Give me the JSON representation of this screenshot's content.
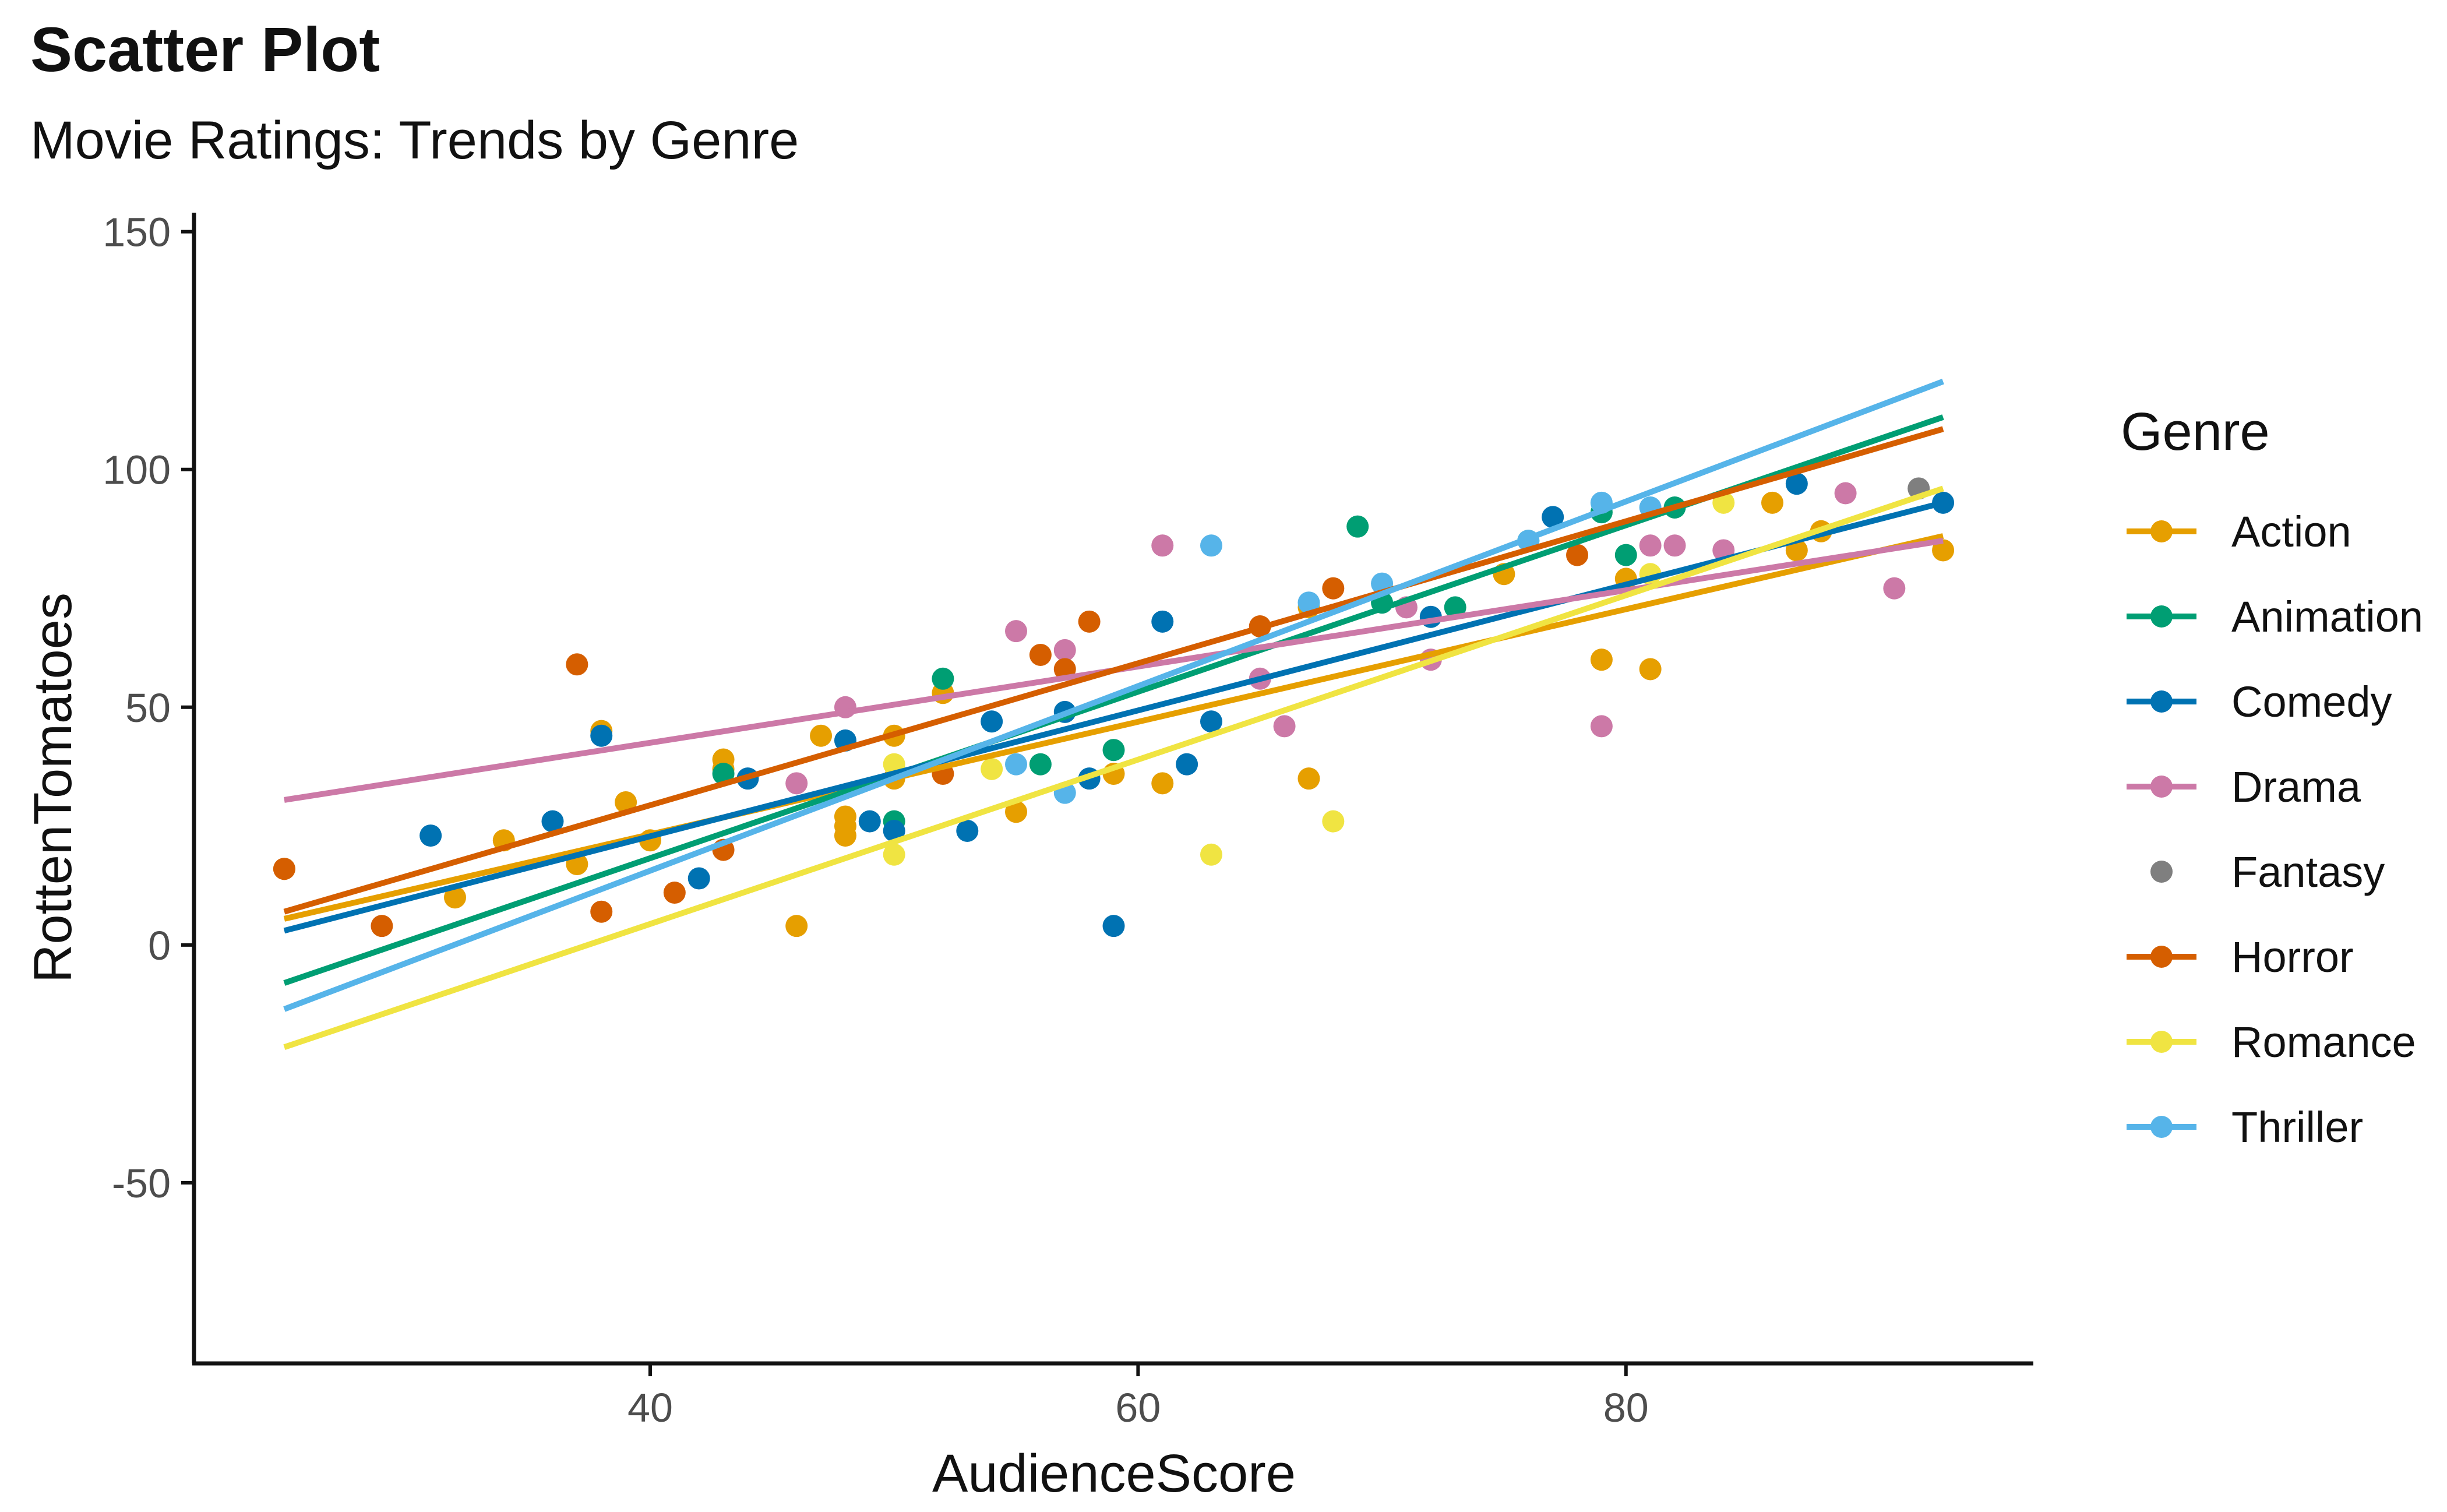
{
  "chart_data": {
    "type": "scatter",
    "title": "Scatter Plot",
    "subtitle": "Movie Ratings: Trends by Genre",
    "xlabel": "AudienceScore",
    "ylabel": "RottenTomatoes",
    "xlim": [
      21.3,
      96.7
    ],
    "ylim": [
      -88,
      154
    ],
    "xticks": [
      40,
      60,
      80
    ],
    "yticks": [
      -50,
      0,
      50,
      100,
      150
    ],
    "xtick_labels": [
      "40",
      "60",
      "80"
    ],
    "ytick_labels": [
      "-50",
      "0",
      "50",
      "100",
      "150"
    ],
    "grid": false,
    "legend": {
      "title": "Genre",
      "position": "right"
    },
    "series": [
      {
        "name": "Action",
        "color": "#E69F00",
        "trend": true,
        "points": [
          [
            25,
            16
          ],
          [
            32,
            10
          ],
          [
            34,
            22
          ],
          [
            37,
            17
          ],
          [
            38,
            45
          ],
          [
            39,
            30
          ],
          [
            40,
            22
          ],
          [
            43,
            39
          ],
          [
            43,
            37
          ],
          [
            46,
            4
          ],
          [
            47,
            44
          ],
          [
            48,
            27
          ],
          [
            48,
            25
          ],
          [
            48,
            23
          ],
          [
            50,
            44
          ],
          [
            50,
            35
          ],
          [
            52,
            53
          ],
          [
            55,
            28
          ],
          [
            59,
            36
          ],
          [
            61,
            34
          ],
          [
            67,
            35
          ],
          [
            67,
            71
          ],
          [
            75,
            78
          ],
          [
            79,
            60
          ],
          [
            80,
            77
          ],
          [
            81,
            58
          ],
          [
            86,
            93
          ],
          [
            87,
            83
          ],
          [
            88,
            87
          ],
          [
            93,
            83
          ]
        ],
        "trend_line": [
          [
            25,
            5.5
          ],
          [
            93,
            86
          ]
        ]
      },
      {
        "name": "Animation",
        "color": "#009E73",
        "trend": true,
        "points": [
          [
            43,
            36
          ],
          [
            50,
            26
          ],
          [
            52,
            56
          ],
          [
            56,
            38
          ],
          [
            59,
            41
          ],
          [
            69,
            88
          ],
          [
            70,
            72
          ],
          [
            73,
            71
          ],
          [
            76,
            85
          ],
          [
            79,
            91
          ],
          [
            80,
            82
          ],
          [
            82,
            92
          ]
        ],
        "trend_line": [
          [
            25,
            -8
          ],
          [
            93,
            111
          ]
        ]
      },
      {
        "name": "Comedy",
        "color": "#0072B2",
        "trend": true,
        "points": [
          [
            31,
            23
          ],
          [
            36,
            26
          ],
          [
            38,
            44
          ],
          [
            42,
            14
          ],
          [
            44,
            35
          ],
          [
            48,
            43
          ],
          [
            49,
            26
          ],
          [
            50,
            24
          ],
          [
            53,
            24
          ],
          [
            54,
            47
          ],
          [
            57,
            49
          ],
          [
            58,
            35
          ],
          [
            59,
            4
          ],
          [
            61,
            68
          ],
          [
            62,
            38
          ],
          [
            63,
            47
          ],
          [
            72,
            69
          ],
          [
            77,
            90
          ],
          [
            87,
            97
          ],
          [
            93,
            93
          ]
        ],
        "trend_line": [
          [
            25,
            3
          ],
          [
            93,
            93
          ]
        ]
      },
      {
        "name": "Drama",
        "color": "#CC79A7",
        "trend": true,
        "points": [
          [
            46,
            34
          ],
          [
            48,
            50
          ],
          [
            55,
            66
          ],
          [
            57,
            62
          ],
          [
            61,
            84
          ],
          [
            65,
            56
          ],
          [
            66,
            46
          ],
          [
            71,
            71
          ],
          [
            72,
            60
          ],
          [
            79,
            46
          ],
          [
            81,
            84
          ],
          [
            82,
            84
          ],
          [
            84,
            83
          ],
          [
            89,
            95
          ],
          [
            91,
            75
          ]
        ],
        "trend_line": [
          [
            25,
            30.5
          ],
          [
            93,
            85
          ]
        ]
      },
      {
        "name": "Fantasy",
        "color": "#7F7F7F",
        "trend": false,
        "points": [
          [
            92,
            96
          ]
        ],
        "trend_line": []
      },
      {
        "name": "Horror",
        "color": "#D55E00",
        "trend": true,
        "points": [
          [
            25,
            16
          ],
          [
            29,
            4
          ],
          [
            37,
            59
          ],
          [
            38,
            7
          ],
          [
            41,
            11
          ],
          [
            43,
            20
          ],
          [
            52,
            36
          ],
          [
            56,
            61
          ],
          [
            57,
            58
          ],
          [
            58,
            68
          ],
          [
            65,
            67
          ],
          [
            68,
            75
          ],
          [
            78,
            82
          ]
        ],
        "trend_line": [
          [
            25,
            7
          ],
          [
            93,
            108.5
          ]
        ]
      },
      {
        "name": "Romance",
        "color": "#F0E442",
        "trend": true,
        "points": [
          [
            50,
            38
          ],
          [
            50,
            19
          ],
          [
            54,
            37
          ],
          [
            63,
            19
          ],
          [
            68,
            26
          ],
          [
            81,
            78
          ],
          [
            84,
            93
          ]
        ],
        "trend_line": [
          [
            25,
            -21.5
          ],
          [
            93,
            96
          ]
        ]
      },
      {
        "name": "Thriller",
        "color": "#56B4E9",
        "trend": true,
        "points": [
          [
            55,
            38
          ],
          [
            57,
            32
          ],
          [
            63,
            84
          ],
          [
            67,
            72
          ],
          [
            70,
            76
          ],
          [
            76,
            85
          ],
          [
            79,
            93
          ],
          [
            81,
            92
          ]
        ],
        "trend_line": [
          [
            25,
            -13.5
          ],
          [
            93,
            118.5
          ]
        ]
      }
    ]
  }
}
